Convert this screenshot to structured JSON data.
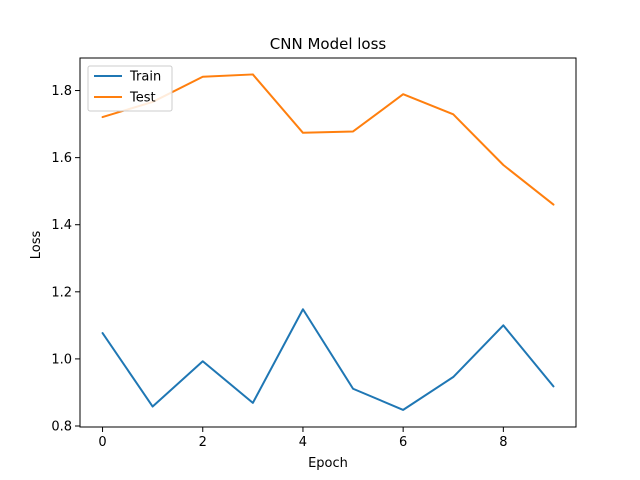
{
  "chart_data": {
    "type": "line",
    "title": "CNN Model loss",
    "xlabel": "Epoch",
    "ylabel": "Loss",
    "x": [
      0,
      1,
      2,
      3,
      4,
      5,
      6,
      7,
      8,
      9
    ],
    "xlim": [
      -0.45,
      9.45
    ],
    "ylim": [
      0.797,
      1.897
    ],
    "xticks": [
      0,
      2,
      4,
      6,
      8
    ],
    "yticks": [
      0.8,
      1.0,
      1.2,
      1.4,
      1.6,
      1.8
    ],
    "xtick_labels": [
      "0",
      "2",
      "4",
      "6",
      "8"
    ],
    "ytick_labels": [
      "0.8",
      "1.0",
      "1.2",
      "1.4",
      "1.6",
      "1.8"
    ],
    "grid": false,
    "legend": {
      "position": "upper left",
      "entries": [
        "Train",
        "Test"
      ]
    },
    "series": [
      {
        "name": "Train",
        "color": "#1f77b4",
        "values": [
          1.077,
          0.858,
          0.993,
          0.869,
          1.148,
          0.911,
          0.848,
          0.946,
          1.1,
          0.918
        ]
      },
      {
        "name": "Test",
        "color": "#ff7f0e",
        "values": [
          1.721,
          1.766,
          1.841,
          1.848,
          1.674,
          1.678,
          1.789,
          1.729,
          1.578,
          1.46
        ]
      }
    ]
  }
}
